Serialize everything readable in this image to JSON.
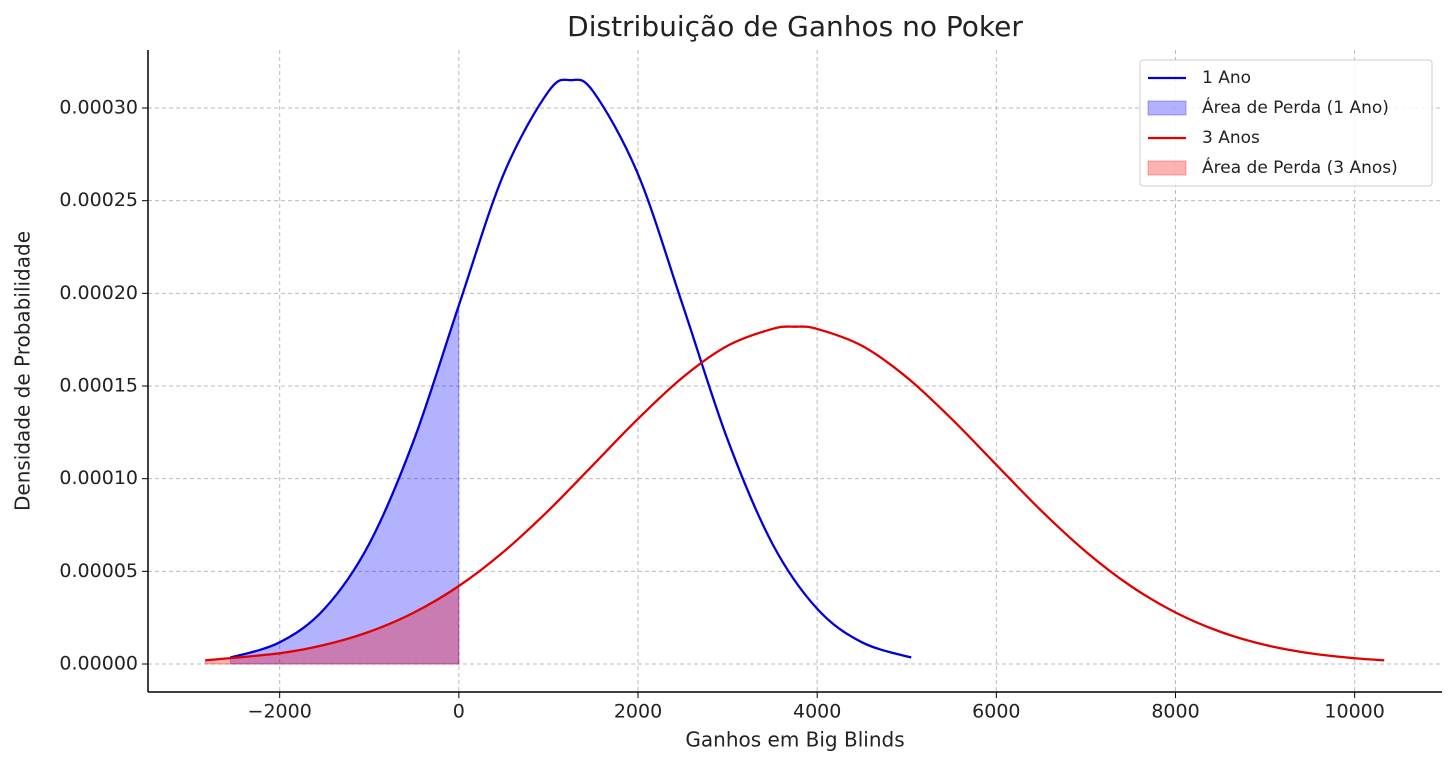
{
  "chart_data": {
    "type": "line",
    "title": "Distribuição de Ganhos no Poker",
    "xlabel": "Ganhos em Big Blinds",
    "ylabel": "Densidade de Probabilidade",
    "xlim": [
      -3470,
      10975
    ],
    "ylim": [
      -1.51e-05,
      0.0003313
    ],
    "xticks": [
      {
        "value": -2000,
        "label": "−2000"
      },
      0,
      2000,
      4000,
      6000,
      8000,
      10000
    ],
    "yticks": [
      {
        "value": 0,
        "label": "0.00000"
      },
      {
        "value": 5e-05,
        "label": "0.00005"
      },
      {
        "value": 0.0001,
        "label": "0.00010"
      },
      {
        "value": 0.00015,
        "label": "0.00015"
      },
      {
        "value": 0.0002,
        "label": "0.00020"
      },
      {
        "value": 0.00025,
        "label": "0.00025"
      },
      {
        "value": 0.0003,
        "label": "0.00030"
      }
    ],
    "grid": true,
    "legend": "upper right",
    "series": [
      {
        "name": "1 Ano",
        "style": "line",
        "color": "#0000d8",
        "x": [
          -2550,
          -2000,
          -1500,
          -1000,
          -500,
          0,
          500,
          1000,
          1250,
          1500,
          2000,
          2500,
          3000,
          3500,
          4000,
          4500,
          5050
        ],
        "values": [
          3.5e-06,
          1.17e-05,
          2.98e-05,
          6.49e-05,
          0.0001211,
          0.0001935,
          0.0002643,
          0.0003089,
          0.000315,
          0.0003089,
          0.0002643,
          0.0001935,
          0.0001211,
          6.49e-05,
          2.98e-05,
          1.17e-05,
          3.5e-06
        ]
      },
      {
        "name": "Área de Perda (1 Ano)",
        "style": "area",
        "color": "#0000ff",
        "alpha": 0.3,
        "x": [
          -2550,
          -2000,
          -1500,
          -1000,
          -500,
          0
        ],
        "values": [
          3.5e-06,
          1.17e-05,
          2.98e-05,
          6.49e-05,
          0.0001211,
          0.0001935
        ]
      },
      {
        "name": "3 Anos",
        "style": "line",
        "color": "#e00000",
        "x": [
          -2830,
          -2000,
          -1500,
          -1000,
          -500,
          0,
          500,
          1000,
          1500,
          2000,
          2500,
          3000,
          3500,
          3750,
          4000,
          4500,
          5000,
          5500,
          6000,
          6500,
          7000,
          7500,
          8000,
          8500,
          9000,
          9500,
          10000,
          10330
        ],
        "values": [
          2e-06,
          5.8e-06,
          1.03e-05,
          1.74e-05,
          2.78e-05,
          4.21e-05,
          6.06e-05,
          8.28e-05,
          0.0001075,
          0.0001323,
          0.0001547,
          0.0001717,
          0.0001808,
          0.000182,
          0.0001808,
          0.0001717,
          0.0001547,
          0.0001323,
          0.0001075,
          8.28e-05,
          6.06e-05,
          4.21e-05,
          2.78e-05,
          1.74e-05,
          1.03e-05,
          5.8e-06,
          3.1e-06,
          2e-06
        ]
      },
      {
        "name": "Área de Perda (3 Anos)",
        "style": "area",
        "color": "#ff0000",
        "alpha": 0.3,
        "x": [
          -2830,
          -2000,
          -1500,
          -1000,
          -500,
          0
        ],
        "values": [
          2e-06,
          5.8e-06,
          1.03e-05,
          1.74e-05,
          2.78e-05,
          4.21e-05
        ]
      }
    ]
  }
}
